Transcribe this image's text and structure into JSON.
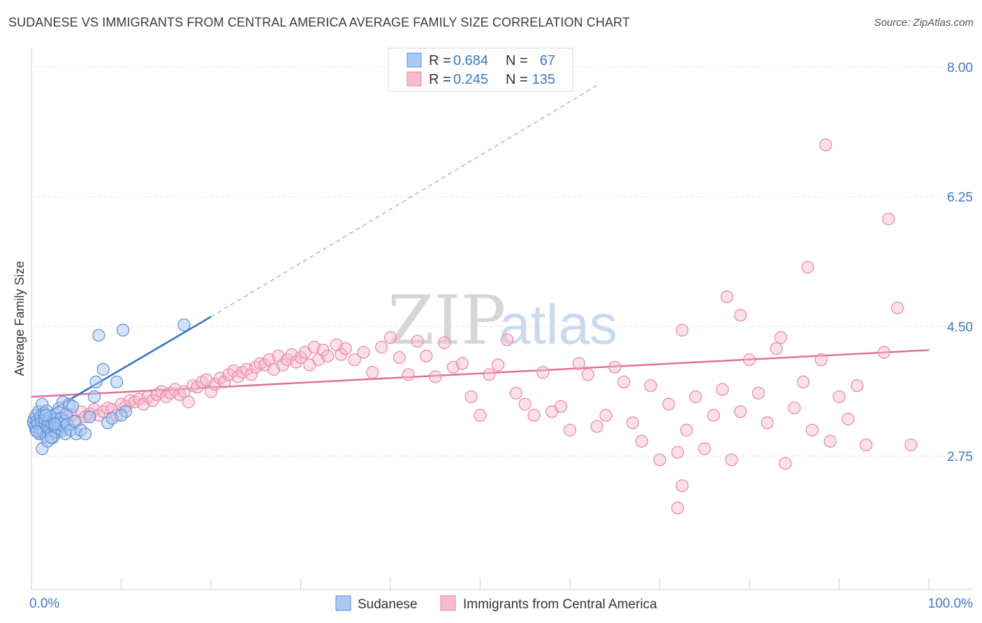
{
  "title": "SUDANESE VS IMMIGRANTS FROM CENTRAL AMERICA AVERAGE FAMILY SIZE CORRELATION CHART",
  "source": "Source: ZipAtlas.com",
  "watermark": {
    "zip": "ZIP",
    "atlas": "atlas"
  },
  "colors": {
    "blue_fill": "#a9c8f2",
    "blue_stroke": "#5b8fd6",
    "blue_line": "#2f6fcf",
    "pink_fill": "#f6b9cf",
    "pink_stroke": "#e886a8",
    "pink_line": "#e0709a",
    "tick_color": "#3d78c9",
    "grid": "#e3e3e3"
  },
  "stats_box": {
    "rows": [
      {
        "r_label": "R =",
        "r_value": "0.684",
        "n_label": "N =",
        "n_value": "67"
      },
      {
        "r_label": "R =",
        "r_value": "0.245",
        "n_label": "N =",
        "n_value": "135"
      }
    ]
  },
  "chart_data": {
    "type": "scatter",
    "title": "SUDANESE VS IMMIGRANTS FROM CENTRAL AMERICA AVERAGE FAMILY SIZE CORRELATION CHART",
    "xlabel": "",
    "ylabel": "Average Family Size",
    "xlim": [
      0,
      100
    ],
    "ylim": [
      1.55,
      8.3
    ],
    "y_ticks": [
      2.75,
      4.5,
      6.25,
      8.0
    ],
    "y_tick_labels": [
      "2.75",
      "4.50",
      "6.25",
      "8.00"
    ],
    "x_tick_labels": [
      "0.0%",
      "100.0%"
    ],
    "grid": true,
    "legend_position": "bottom",
    "series": [
      {
        "name": "Sudanese",
        "color": "#a9c8f2",
        "trend": {
          "x": [
            1,
            20
          ],
          "y": [
            3.28,
            4.63
          ],
          "extended_to": [
            63,
            7.75
          ]
        },
        "points": [
          [
            0.2,
            3.2
          ],
          [
            0.3,
            3.25
          ],
          [
            0.4,
            3.15
          ],
          [
            0.5,
            3.3
          ],
          [
            0.5,
            3.1
          ],
          [
            0.6,
            3.22
          ],
          [
            0.7,
            3.18
          ],
          [
            0.8,
            3.35
          ],
          [
            0.9,
            3.05
          ],
          [
            1.0,
            3.28
          ],
          [
            1.0,
            3.12
          ],
          [
            1.1,
            3.2
          ],
          [
            1.2,
            3.45
          ],
          [
            1.3,
            3.08
          ],
          [
            1.4,
            3.33
          ],
          [
            1.5,
            3.18
          ],
          [
            1.5,
            3.25
          ],
          [
            1.6,
            3.02
          ],
          [
            1.7,
            3.36
          ],
          [
            1.8,
            3.15
          ],
          [
            1.9,
            3.22
          ],
          [
            2.0,
            3.1
          ],
          [
            2.1,
            3.28
          ],
          [
            2.2,
            3.05
          ],
          [
            2.3,
            3.19
          ],
          [
            2.4,
            3.0
          ],
          [
            2.5,
            3.24
          ],
          [
            2.6,
            3.14
          ],
          [
            2.7,
            3.31
          ],
          [
            2.8,
            3.07
          ],
          [
            2.9,
            3.2
          ],
          [
            3.0,
            3.12
          ],
          [
            3.1,
            3.4
          ],
          [
            3.2,
            3.18
          ],
          [
            3.3,
            3.26
          ],
          [
            3.4,
            3.09
          ],
          [
            3.5,
            3.48
          ],
          [
            3.6,
            3.15
          ],
          [
            3.7,
            3.22
          ],
          [
            3.8,
            3.05
          ],
          [
            3.9,
            3.32
          ],
          [
            4.0,
            3.18
          ],
          [
            4.2,
            3.45
          ],
          [
            4.4,
            3.1
          ],
          [
            4.6,
            3.42
          ],
          [
            4.8,
            3.22
          ],
          [
            5.0,
            3.05
          ],
          [
            5.5,
            3.1
          ],
          [
            6.0,
            3.05
          ],
          [
            6.5,
            3.28
          ],
          [
            7.0,
            3.55
          ],
          [
            7.2,
            3.75
          ],
          [
            7.5,
            4.38
          ],
          [
            8.0,
            3.92
          ],
          [
            8.5,
            3.2
          ],
          [
            9.0,
            3.26
          ],
          [
            9.5,
            3.75
          ],
          [
            10.5,
            3.35
          ],
          [
            10.0,
            3.3
          ],
          [
            1.2,
            2.85
          ],
          [
            1.8,
            2.95
          ],
          [
            2.2,
            3.0
          ],
          [
            0.6,
            3.08
          ],
          [
            1.6,
            3.3
          ],
          [
            2.6,
            3.18
          ],
          [
            17.0,
            4.52
          ],
          [
            10.2,
            4.45
          ]
        ]
      },
      {
        "name": "Immigrants from Central America",
        "color": "#f6b9cf",
        "trend": {
          "x": [
            0,
            100
          ],
          "y": [
            3.55,
            4.18
          ]
        },
        "points": [
          [
            0.5,
            3.1
          ],
          [
            1.0,
            3.05
          ],
          [
            1.5,
            3.15
          ],
          [
            2.0,
            3.2
          ],
          [
            2.5,
            3.22
          ],
          [
            3.0,
            3.15
          ],
          [
            3.5,
            3.25
          ],
          [
            4.0,
            3.28
          ],
          [
            4.5,
            3.3
          ],
          [
            5.0,
            3.22
          ],
          [
            5.5,
            3.35
          ],
          [
            6.0,
            3.28
          ],
          [
            6.5,
            3.32
          ],
          [
            7.0,
            3.38
          ],
          [
            7.5,
            3.3
          ],
          [
            8.0,
            3.35
          ],
          [
            8.5,
            3.4
          ],
          [
            9.0,
            3.38
          ],
          [
            9.5,
            3.3
          ],
          [
            10.0,
            3.45
          ],
          [
            10.5,
            3.42
          ],
          [
            11.0,
            3.5
          ],
          [
            11.5,
            3.48
          ],
          [
            12.0,
            3.52
          ],
          [
            12.5,
            3.45
          ],
          [
            13.0,
            3.55
          ],
          [
            13.5,
            3.5
          ],
          [
            14.0,
            3.58
          ],
          [
            14.5,
            3.62
          ],
          [
            15.0,
            3.55
          ],
          [
            15.5,
            3.6
          ],
          [
            16.0,
            3.65
          ],
          [
            16.5,
            3.58
          ],
          [
            17.0,
            3.62
          ],
          [
            17.5,
            3.48
          ],
          [
            18.0,
            3.7
          ],
          [
            18.5,
            3.68
          ],
          [
            19.0,
            3.75
          ],
          [
            19.5,
            3.78
          ],
          [
            20.0,
            3.62
          ],
          [
            20.5,
            3.72
          ],
          [
            21.0,
            3.8
          ],
          [
            21.5,
            3.75
          ],
          [
            22.0,
            3.85
          ],
          [
            22.5,
            3.9
          ],
          [
            23.0,
            3.82
          ],
          [
            23.5,
            3.88
          ],
          [
            24.0,
            3.92
          ],
          [
            24.5,
            3.85
          ],
          [
            25.0,
            3.95
          ],
          [
            25.5,
            4.0
          ],
          [
            26.0,
            3.98
          ],
          [
            26.5,
            4.05
          ],
          [
            27.0,
            3.92
          ],
          [
            27.5,
            4.1
          ],
          [
            28.0,
            3.98
          ],
          [
            28.5,
            4.05
          ],
          [
            29.0,
            4.12
          ],
          [
            29.5,
            4.02
          ],
          [
            30.0,
            4.08
          ],
          [
            30.5,
            4.15
          ],
          [
            31.0,
            3.98
          ],
          [
            31.5,
            4.22
          ],
          [
            32.0,
            4.05
          ],
          [
            32.5,
            4.18
          ],
          [
            33.0,
            4.1
          ],
          [
            34.0,
            4.25
          ],
          [
            34.5,
            4.12
          ],
          [
            35.0,
            4.2
          ],
          [
            36.0,
            4.05
          ],
          [
            37.0,
            4.15
          ],
          [
            38.0,
            3.88
          ],
          [
            39.0,
            4.22
          ],
          [
            40.0,
            4.35
          ],
          [
            41.0,
            4.08
          ],
          [
            42.0,
            3.85
          ],
          [
            43.0,
            4.3
          ],
          [
            44.0,
            4.1
          ],
          [
            45.0,
            3.82
          ],
          [
            46.0,
            4.28
          ],
          [
            47.0,
            3.95
          ],
          [
            48.0,
            4.0
          ],
          [
            49.0,
            3.55
          ],
          [
            50.0,
            3.3
          ],
          [
            51.0,
            3.85
          ],
          [
            52.0,
            3.98
          ],
          [
            53.0,
            4.32
          ],
          [
            54.0,
            3.6
          ],
          [
            55.0,
            3.45
          ],
          [
            56.0,
            3.3
          ],
          [
            57.0,
            3.88
          ],
          [
            58.0,
            3.35
          ],
          [
            59.0,
            3.42
          ],
          [
            60.0,
            3.1
          ],
          [
            61.0,
            4.0
          ],
          [
            62.0,
            3.85
          ],
          [
            63.0,
            3.15
          ],
          [
            64.0,
            3.3
          ],
          [
            65.0,
            3.95
          ],
          [
            66.0,
            3.75
          ],
          [
            67.0,
            3.2
          ],
          [
            68.0,
            2.95
          ],
          [
            69.0,
            3.7
          ],
          [
            70.0,
            2.7
          ],
          [
            71.0,
            3.45
          ],
          [
            72.0,
            2.8
          ],
          [
            73.0,
            3.1
          ],
          [
            74.0,
            3.55
          ],
          [
            75.0,
            2.85
          ],
          [
            76.0,
            3.3
          ],
          [
            77.0,
            3.65
          ],
          [
            78.0,
            2.7
          ],
          [
            79.0,
            3.35
          ],
          [
            80.0,
            4.05
          ],
          [
            81.0,
            3.6
          ],
          [
            82.0,
            3.2
          ],
          [
            83.0,
            4.2
          ],
          [
            84.0,
            2.65
          ],
          [
            85.0,
            3.4
          ],
          [
            86.0,
            3.75
          ],
          [
            87.0,
            3.1
          ],
          [
            88.0,
            4.05
          ],
          [
            89.0,
            2.95
          ],
          [
            90.0,
            3.55
          ],
          [
            91.0,
            3.25
          ],
          [
            92.0,
            3.7
          ],
          [
            93.0,
            2.9
          ],
          [
            95.0,
            4.15
          ],
          [
            98.0,
            2.9
          ],
          [
            72.5,
            2.35
          ],
          [
            72.0,
            2.05
          ],
          [
            88.5,
            6.95
          ],
          [
            95.5,
            5.95
          ],
          [
            86.5,
            5.3
          ],
          [
            77.5,
            4.9
          ],
          [
            79.0,
            4.65
          ],
          [
            96.5,
            4.75
          ],
          [
            83.5,
            4.35
          ],
          [
            72.5,
            4.45
          ],
          [
            1.2,
            3.3
          ]
        ]
      }
    ]
  },
  "legend": {
    "items": [
      {
        "label": "Sudanese"
      },
      {
        "label": "Immigrants from Central America"
      }
    ]
  }
}
